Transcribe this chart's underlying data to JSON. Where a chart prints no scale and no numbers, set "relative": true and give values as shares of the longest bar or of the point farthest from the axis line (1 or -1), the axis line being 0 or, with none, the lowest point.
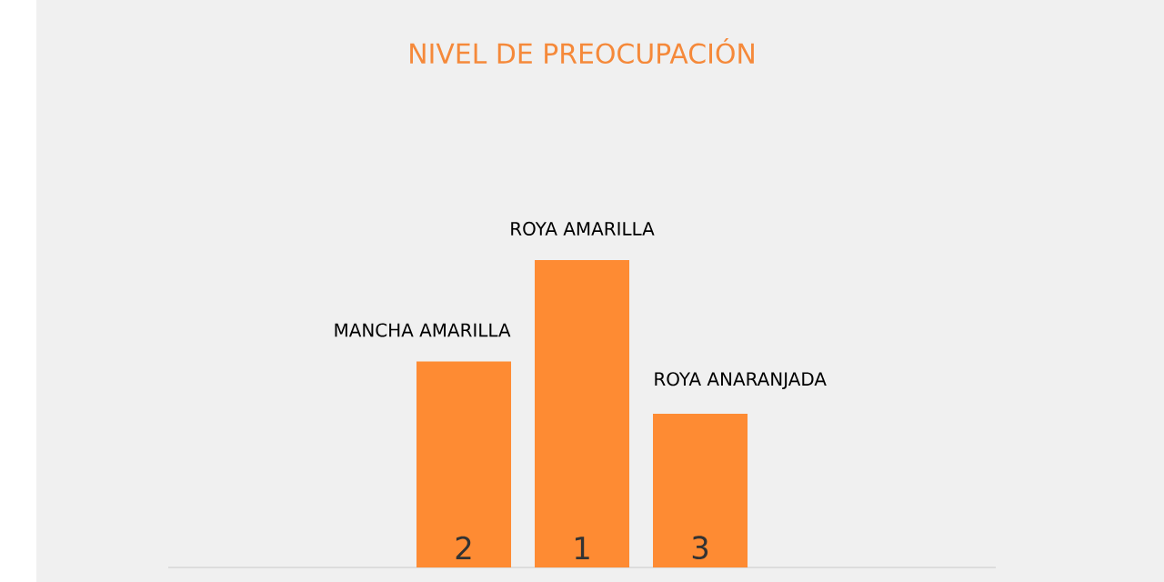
{
  "chart_data": {
    "type": "bar",
    "title": "NIVEL DE PREOCUPACIÓN",
    "categories": [
      "MANCHA AMARILLA",
      "ROYA AMARILLA",
      "ROYA ANARANJADA"
    ],
    "values": [
      0.67,
      1,
      0.5
    ],
    "annotations": [
      "2",
      "1",
      "3"
    ],
    "color": "#fe8b33",
    "relative": true
  }
}
